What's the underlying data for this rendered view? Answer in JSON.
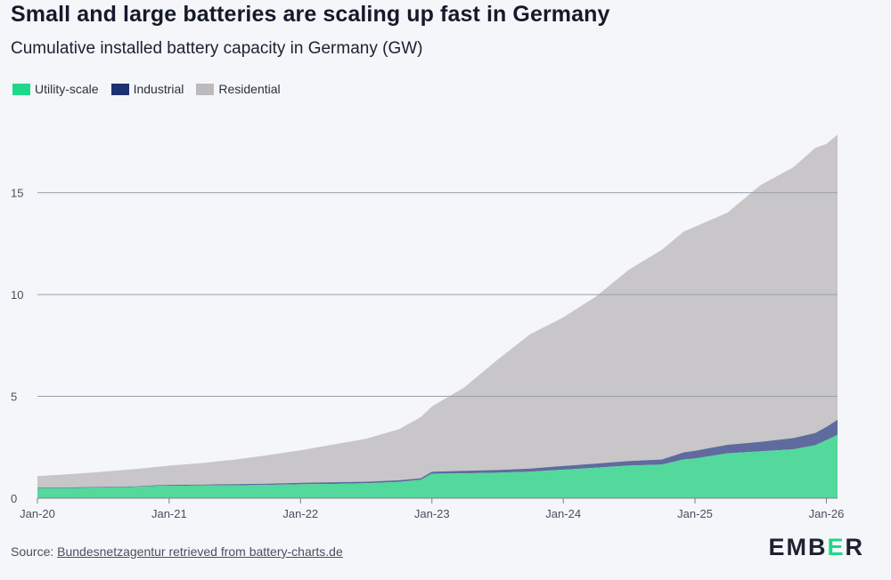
{
  "header": {
    "title": "Small and large batteries are scaling up fast in Germany",
    "subtitle": "Cumulative installed battery capacity in Germany (GW)"
  },
  "footer": {
    "source_prefix": "Source:",
    "source_link": "Bundesnetzagentur retrieved from battery-charts.de",
    "logo_pre": "EMB",
    "logo_e": "E",
    "logo_post": "R"
  },
  "colors": {
    "utility": "#52d99b",
    "industrial": "#5f6b9e",
    "residential": "#c8c6c8",
    "legend_utility": "#1fd88a",
    "legend_industrial": "#1d3270",
    "legend_residential": "#bdbabb",
    "grid": "#9aa0ab"
  },
  "chart_data": {
    "type": "area",
    "stacked": true,
    "title": "",
    "xlabel": "",
    "ylabel": "",
    "ylim": [
      0,
      18
    ],
    "yticks": [
      0,
      5,
      10,
      15
    ],
    "ytick_labels": [
      "0",
      "5",
      "10",
      "15"
    ],
    "xticks": [
      "2020-01",
      "2021-01",
      "2022-01",
      "2023-01",
      "2024-01",
      "2025-01",
      "2026-01"
    ],
    "xtick_labels": [
      "Jan-20",
      "Jan-21",
      "Jan-22",
      "Jan-23",
      "Jan-24",
      "Jan-25",
      "Jan-26"
    ],
    "grid": "horizontal",
    "legend_position": "top-left",
    "x": [
      "2020-01",
      "2020-04",
      "2020-07",
      "2020-10",
      "2020-12",
      "2021-01",
      "2021-04",
      "2021-07",
      "2021-10",
      "2022-01",
      "2022-04",
      "2022-07",
      "2022-10",
      "2022-12",
      "2023-01",
      "2023-04",
      "2023-07",
      "2023-10",
      "2024-01",
      "2024-04",
      "2024-07",
      "2024-10",
      "2024-12",
      "2025-01",
      "2025-04",
      "2025-07",
      "2025-10",
      "2025-12",
      "2026-01",
      "2026-02"
    ],
    "series": [
      {
        "name": "Utility-scale",
        "values": [
          0.5,
          0.5,
          0.52,
          0.55,
          0.6,
          0.6,
          0.62,
          0.63,
          0.65,
          0.68,
          0.7,
          0.73,
          0.8,
          0.9,
          1.2,
          1.22,
          1.25,
          1.3,
          1.4,
          1.5,
          1.6,
          1.65,
          1.9,
          1.95,
          2.2,
          2.3,
          2.4,
          2.6,
          2.85,
          3.1
        ]
      },
      {
        "name": "Industrial",
        "values": [
          0.03,
          0.03,
          0.03,
          0.03,
          0.04,
          0.05,
          0.05,
          0.06,
          0.06,
          0.07,
          0.08,
          0.08,
          0.08,
          0.08,
          0.1,
          0.12,
          0.13,
          0.15,
          0.18,
          0.2,
          0.22,
          0.25,
          0.35,
          0.38,
          0.42,
          0.46,
          0.55,
          0.6,
          0.65,
          0.75
        ]
      },
      {
        "name": "Residential",
        "values": [
          0.55,
          0.65,
          0.75,
          0.85,
          0.9,
          0.95,
          1.05,
          1.2,
          1.4,
          1.6,
          1.85,
          2.1,
          2.5,
          3.0,
          3.2,
          4.1,
          5.4,
          6.6,
          7.3,
          8.2,
          9.4,
          10.3,
          10.85,
          11.0,
          11.4,
          12.6,
          13.3,
          14.0,
          13.9,
          14.0
        ]
      }
    ]
  }
}
